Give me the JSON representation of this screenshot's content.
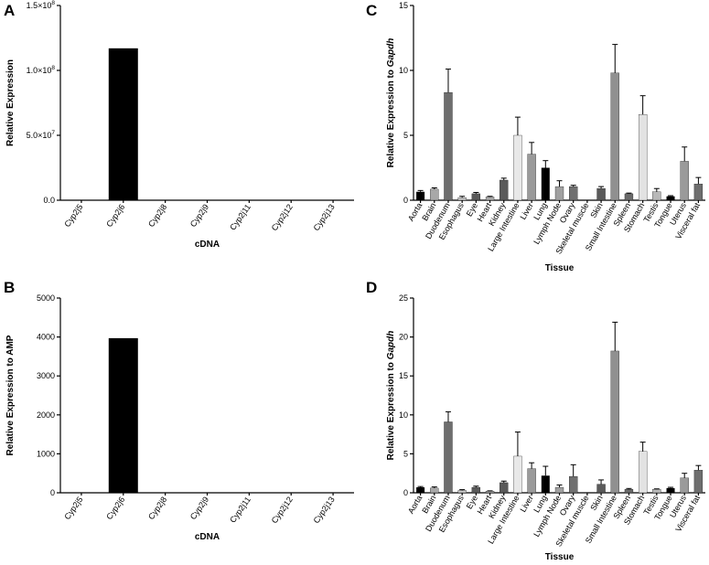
{
  "chart_data": [
    {
      "panel": "A",
      "type": "bar",
      "xlabel": "cDNA",
      "ylabel": "Relative Expression",
      "ylim": [
        0,
        150000000
      ],
      "y_ticks": [
        {
          "value": 0,
          "label": "0.0"
        },
        {
          "value": 50000000,
          "label": "5.0×10",
          "sup": "7"
        },
        {
          "value": 100000000,
          "label": "1.0×10",
          "sup": "8"
        },
        {
          "value": 150000000,
          "label": "1.5×10",
          "sup": "8"
        }
      ],
      "categories": [
        "Cyp2j5",
        "Cyp2j6",
        "Cyp2j8",
        "Cyp2j9",
        "Cyp2j11",
        "Cyp2j12",
        "Cyp2j13"
      ],
      "values": [
        0,
        117000000,
        0,
        0,
        0,
        0,
        0
      ],
      "errors": [
        0,
        0,
        0,
        0,
        0,
        0,
        0
      ],
      "colors": [
        "#000000",
        "#000000",
        "#000000",
        "#000000",
        "#000000",
        "#000000",
        "#000000"
      ]
    },
    {
      "panel": "B",
      "type": "bar",
      "xlabel": "cDNA",
      "ylabel": "Relative Expression to AMP",
      "ylim": [
        0,
        5000
      ],
      "y_ticks": [
        {
          "value": 0,
          "label": "0"
        },
        {
          "value": 1000,
          "label": "1000"
        },
        {
          "value": 2000,
          "label": "2000"
        },
        {
          "value": 3000,
          "label": "3000"
        },
        {
          "value": 4000,
          "label": "4000"
        },
        {
          "value": 5000,
          "label": "5000"
        }
      ],
      "categories": [
        "Cyp2j5",
        "Cyp2j6",
        "Cyp2j8",
        "Cyp2j9",
        "Cyp2j11",
        "Cyp2j12",
        "Cyp2j13"
      ],
      "values": [
        0,
        3970,
        0,
        0,
        0,
        0,
        0
      ],
      "errors": [
        0,
        0,
        0,
        0,
        0,
        0,
        0
      ],
      "colors": [
        "#000000",
        "#000000",
        "#000000",
        "#000000",
        "#000000",
        "#000000",
        "#000000"
      ]
    },
    {
      "panel": "C",
      "type": "bar",
      "xlabel": "Tissue",
      "ylabel": "Relative Expression to ",
      "ylabel_italic": "Gapdh",
      "ylim": [
        0,
        15
      ],
      "y_ticks": [
        {
          "value": 0,
          "label": "0"
        },
        {
          "value": 5,
          "label": "5"
        },
        {
          "value": 10,
          "label": "10"
        },
        {
          "value": 15,
          "label": "15"
        }
      ],
      "categories": [
        "Aorta",
        "Brain",
        "Duodenum",
        "Esophagus",
        "Eye",
        "Heart",
        "Kidney",
        "Large Intestine",
        "Liver",
        "Lung",
        "Lymph Node",
        "Ovary",
        "Skeletal muscle",
        "Skin",
        "Small Intestine",
        "Spleen",
        "Stomach",
        "Testis",
        "Tongue",
        "Uterus",
        "Visceral fat"
      ],
      "values": [
        0.65,
        0.85,
        8.3,
        0.2,
        0.5,
        0.25,
        1.55,
        5.0,
        3.55,
        2.5,
        1.05,
        1.05,
        0.0,
        0.9,
        9.8,
        0.5,
        6.6,
        0.65,
        0.3,
        3.0,
        1.25
      ],
      "errors": [
        0.1,
        0.1,
        1.8,
        0.1,
        0.1,
        0.05,
        0.15,
        1.4,
        0.9,
        0.55,
        0.45,
        0.1,
        0.0,
        0.15,
        2.2,
        0.05,
        1.45,
        0.25,
        0.05,
        1.1,
        0.5
      ],
      "colors": [
        "#000000",
        "#a8a8a8",
        "#6e6e6e",
        "#c8c8c8",
        "#5a5a5a",
        "#a8a8a8",
        "#5a5a5a",
        "#e8e8e8",
        "#9a9a9a",
        "#000000",
        "#a0a0a0",
        "#707070",
        "#bdbdbd",
        "#5a5a5a",
        "#909090",
        "#6a6a6a",
        "#e2e2e2",
        "#b8b8b8",
        "#000000",
        "#9a9a9a",
        "#6e6e6e"
      ]
    },
    {
      "panel": "D",
      "type": "bar",
      "xlabel": "Tissue",
      "ylabel": "Relative Expression to ",
      "ylabel_italic": "Gapdh",
      "ylim": [
        0,
        25
      ],
      "y_ticks": [
        {
          "value": 0,
          "label": "0"
        },
        {
          "value": 5,
          "label": "5"
        },
        {
          "value": 10,
          "label": "10"
        },
        {
          "value": 15,
          "label": "15"
        },
        {
          "value": 20,
          "label": "20"
        },
        {
          "value": 25,
          "label": "25"
        }
      ],
      "categories": [
        "Aorta",
        "Brain",
        "Duodenum",
        "Esophagus",
        "Eye",
        "Heart",
        "Kidney",
        "Large Intestine",
        "Liver",
        "Lung",
        "Lymph Node",
        "Ovary",
        "Skeletal muscle",
        "Skin",
        "Small Intestine",
        "Spleen",
        "Stomach",
        "Testis",
        "Tongue",
        "Uterus",
        "Visceral fat"
      ],
      "values": [
        0.7,
        0.6,
        9.1,
        0.3,
        0.7,
        0.2,
        1.3,
        4.7,
        3.1,
        2.2,
        0.7,
        2.1,
        0.0,
        1.1,
        18.2,
        0.45,
        5.3,
        0.45,
        0.6,
        1.9,
        2.9
      ],
      "errors": [
        0.1,
        0.15,
        1.3,
        0.1,
        0.15,
        0.05,
        0.2,
        3.1,
        0.75,
        1.2,
        0.3,
        1.5,
        0.0,
        0.55,
        3.7,
        0.1,
        1.2,
        0.05,
        0.1,
        0.6,
        0.6
      ],
      "colors": [
        "#000000",
        "#a8a8a8",
        "#6e6e6e",
        "#c8c8c8",
        "#5a5a5a",
        "#a8a8a8",
        "#5a5a5a",
        "#e8e8e8",
        "#9a9a9a",
        "#000000",
        "#a0a0a0",
        "#707070",
        "#bdbdbd",
        "#5a5a5a",
        "#909090",
        "#6a6a6a",
        "#e2e2e2",
        "#b8b8b8",
        "#000000",
        "#9a9a9a",
        "#6e6e6e"
      ]
    }
  ]
}
